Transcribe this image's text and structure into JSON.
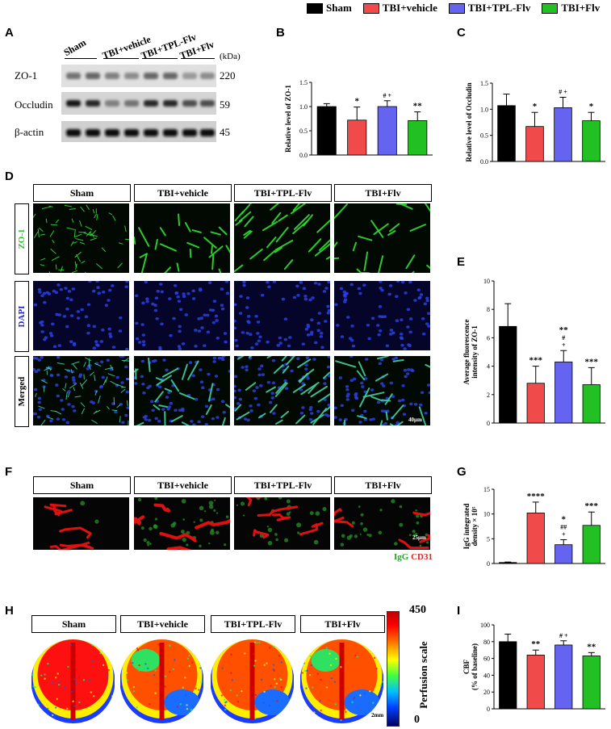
{
  "legend": [
    {
      "label": "Sham",
      "color": "#000000"
    },
    {
      "label": "TBI+vehicle",
      "color": "#f04a4a"
    },
    {
      "label": "TBI+TPL-Flv",
      "color": "#6464f0"
    },
    {
      "label": "TBI+Flv",
      "color": "#22c022"
    }
  ],
  "panel_letters": {
    "A": "A",
    "B": "B",
    "C": "C",
    "D": "D",
    "E": "E",
    "F": "F",
    "G": "G",
    "H": "H",
    "I": "I"
  },
  "blot": {
    "groups": [
      "Sham",
      "TBI+vehicle",
      "TBI+TPL-Flv",
      "TBI+Flv"
    ],
    "kda_header": "(kDa)",
    "rows": [
      {
        "name": "ZO-1",
        "kda": "220"
      },
      {
        "name": "Occludin",
        "kda": "59"
      },
      {
        "name": "β-actin",
        "kda": "45"
      }
    ]
  },
  "groups_header": [
    "Sham",
    "TBI+vehicle",
    "TBI+TPL-Flv",
    "TBI+Flv"
  ],
  "row_labels": {
    "zo1": "ZO-1",
    "dapi": "DAPI",
    "merged": "Merged"
  },
  "scale_bars": {
    "D": "40μm",
    "F": "25μm",
    "H": "2mm"
  },
  "igg_label": {
    "igg": "IgG",
    "cd31": "CD31"
  },
  "perfusion": {
    "max": "450",
    "min": "0",
    "label": "Perfusion scale"
  },
  "chart_data": [
    {
      "panel": "B",
      "type": "bar",
      "categories": [
        "Sham",
        "TBI+vehicle",
        "TBI+TPL-Flv",
        "TBI+Flv"
      ],
      "values": [
        1.0,
        0.72,
        1.0,
        0.71
      ],
      "errors": [
        0.06,
        0.27,
        0.12,
        0.18
      ],
      "annotations": [
        "",
        "*",
        "# +",
        "**"
      ],
      "ylabel": "Relative level of ZO-1",
      "ylim": [
        0,
        1.5
      ],
      "ticks": [
        0.0,
        0.5,
        1.0,
        1.5
      ],
      "tick_labels": [
        "0.0",
        "0.5",
        "1.0",
        "1.5"
      ]
    },
    {
      "panel": "C",
      "type": "bar",
      "categories": [
        "Sham",
        "TBI+vehicle",
        "TBI+TPL-Flv",
        "TBI+Flv"
      ],
      "values": [
        1.07,
        0.67,
        1.03,
        0.78
      ],
      "errors": [
        0.22,
        0.27,
        0.2,
        0.16
      ],
      "annotations": [
        "",
        "*",
        "# +",
        "*"
      ],
      "ylabel": "Relative level of Occludin",
      "ylim": [
        0,
        1.5
      ],
      "ticks": [
        0.0,
        0.5,
        1.0,
        1.5
      ],
      "tick_labels": [
        "0.0",
        "0.5",
        "1.0",
        "1.5"
      ]
    },
    {
      "panel": "E",
      "type": "bar",
      "categories": [
        "Sham",
        "TBI+vehicle",
        "TBI+TPL-Flv",
        "TBI+Flv"
      ],
      "values": [
        6.8,
        2.8,
        4.3,
        2.7
      ],
      "errors": [
        1.6,
        1.2,
        0.8,
        1.2
      ],
      "annotations": [
        "",
        "***",
        "**\n#\n+",
        "***"
      ],
      "ylabel": "Average fluorescence intensity of ZO-1",
      "ylim": [
        0,
        10
      ],
      "ticks": [
        0,
        2,
        4,
        6,
        8,
        10
      ],
      "tick_labels": [
        "0",
        "2",
        "4",
        "6",
        "8",
        "10"
      ]
    },
    {
      "panel": "G",
      "type": "bar",
      "categories": [
        "Sham",
        "TBI+vehicle",
        "TBI+TPL-Flv",
        "TBI+Flv"
      ],
      "values": [
        0.2,
        10.2,
        3.8,
        7.7
      ],
      "errors": [
        0.1,
        2.2,
        1.0,
        2.7
      ],
      "annotations": [
        "",
        "****",
        "*\n##\n+",
        "***"
      ],
      "ylabel": "IgG integrated density × 10⁵",
      "ylim": [
        0,
        15
      ],
      "ticks": [
        0,
        5,
        10,
        15
      ],
      "tick_labels": [
        "0",
        "5",
        "10",
        "15"
      ]
    },
    {
      "panel": "I",
      "type": "bar",
      "categories": [
        "Sham",
        "TBI+vehicle",
        "TBI+TPL-Flv",
        "TBI+Flv"
      ],
      "values": [
        80,
        64,
        76,
        63
      ],
      "errors": [
        9,
        6,
        5,
        4
      ],
      "annotations": [
        "",
        "**",
        "# +",
        "**"
      ],
      "ylabel": "CBF (% of baseline)",
      "ylim": [
        0,
        100
      ],
      "ticks": [
        0,
        20,
        40,
        60,
        80,
        100
      ],
      "tick_labels": [
        "0",
        "20",
        "40",
        "60",
        "80",
        "100"
      ]
    }
  ]
}
